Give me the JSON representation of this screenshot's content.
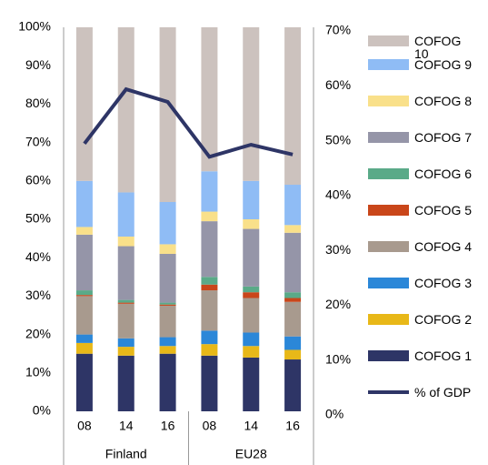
{
  "chart_data": {
    "type": "bar",
    "stacked": true,
    "categories": [
      "08",
      "14",
      "16",
      "08",
      "14",
      "16"
    ],
    "groups": [
      "Finland",
      "EU28"
    ],
    "ylim": [
      0,
      100
    ],
    "yticks": [
      {
        "value": 0,
        "label": "0%"
      },
      {
        "value": 10,
        "label": "10%"
      },
      {
        "value": 20,
        "label": "20%"
      },
      {
        "value": 30,
        "label": "30%"
      },
      {
        "value": 40,
        "label": "40%"
      },
      {
        "value": 50,
        "label": "50%"
      },
      {
        "value": 60,
        "label": "60%"
      },
      {
        "value": 70,
        "label": "70%"
      },
      {
        "value": 80,
        "label": "80%"
      },
      {
        "value": 90,
        "label": "90%"
      },
      {
        "value": 100,
        "label": "100%"
      }
    ],
    "y2lim": [
      0,
      70
    ],
    "y2ticks": [
      {
        "value": 0,
        "label": "0%"
      },
      {
        "value": 10,
        "label": "10%"
      },
      {
        "value": 20,
        "label": "20%"
      },
      {
        "value": 30,
        "label": "30%"
      },
      {
        "value": 40,
        "label": "40%"
      },
      {
        "value": 50,
        "label": "50%"
      },
      {
        "value": 60,
        "label": "60%"
      },
      {
        "value": 70,
        "label": "70%"
      }
    ],
    "series": [
      {
        "name": "COFOG 1",
        "color": "#2e3566",
        "values": [
          15,
          14.5,
          15,
          14.5,
          14,
          13.5
        ]
      },
      {
        "name": "COFOG 2",
        "color": "#e8b818",
        "values": [
          2.8,
          2.3,
          2,
          3,
          3,
          2.5
        ]
      },
      {
        "name": "COFOG 3",
        "color": "#2b87d8",
        "values": [
          2.2,
          2.2,
          2.3,
          3.5,
          3.5,
          3.5
        ]
      },
      {
        "name": "COFOG 4",
        "color": "#a89a8e",
        "values": [
          10,
          9,
          8.2,
          10.5,
          9,
          9
        ]
      },
      {
        "name": "COFOG 5",
        "color": "#c9461a",
        "values": [
          0.3,
          0.3,
          0.3,
          1.5,
          1.5,
          1
        ]
      },
      {
        "name": "COFOG 6",
        "color": "#5aaa88",
        "values": [
          1.2,
          0.7,
          0.5,
          2,
          1.5,
          1.5
        ]
      },
      {
        "name": "COFOG 7",
        "color": "#9595a8",
        "values": [
          14.5,
          14,
          12.7,
          14.5,
          15,
          15.5
        ]
      },
      {
        "name": "COFOG 8",
        "color": "#f9e08a",
        "values": [
          2,
          2.5,
          2.5,
          2.5,
          2.5,
          2
        ]
      },
      {
        "name": "COFOG 9",
        "color": "#8fbcf5",
        "values": [
          12,
          11.5,
          11,
          10.5,
          10,
          10.5
        ]
      },
      {
        "name": "COFOG 10",
        "color": "#ccc2be",
        "values": [
          40,
          43,
          45.5,
          37.5,
          40,
          41
        ]
      },
      {
        "name": "% of GDP",
        "color": "#2e3566",
        "type": "line",
        "axis": "y2",
        "values": [
          48.8,
          58.7,
          56.4,
          46.4,
          48.6,
          46.8
        ]
      }
    ]
  }
}
